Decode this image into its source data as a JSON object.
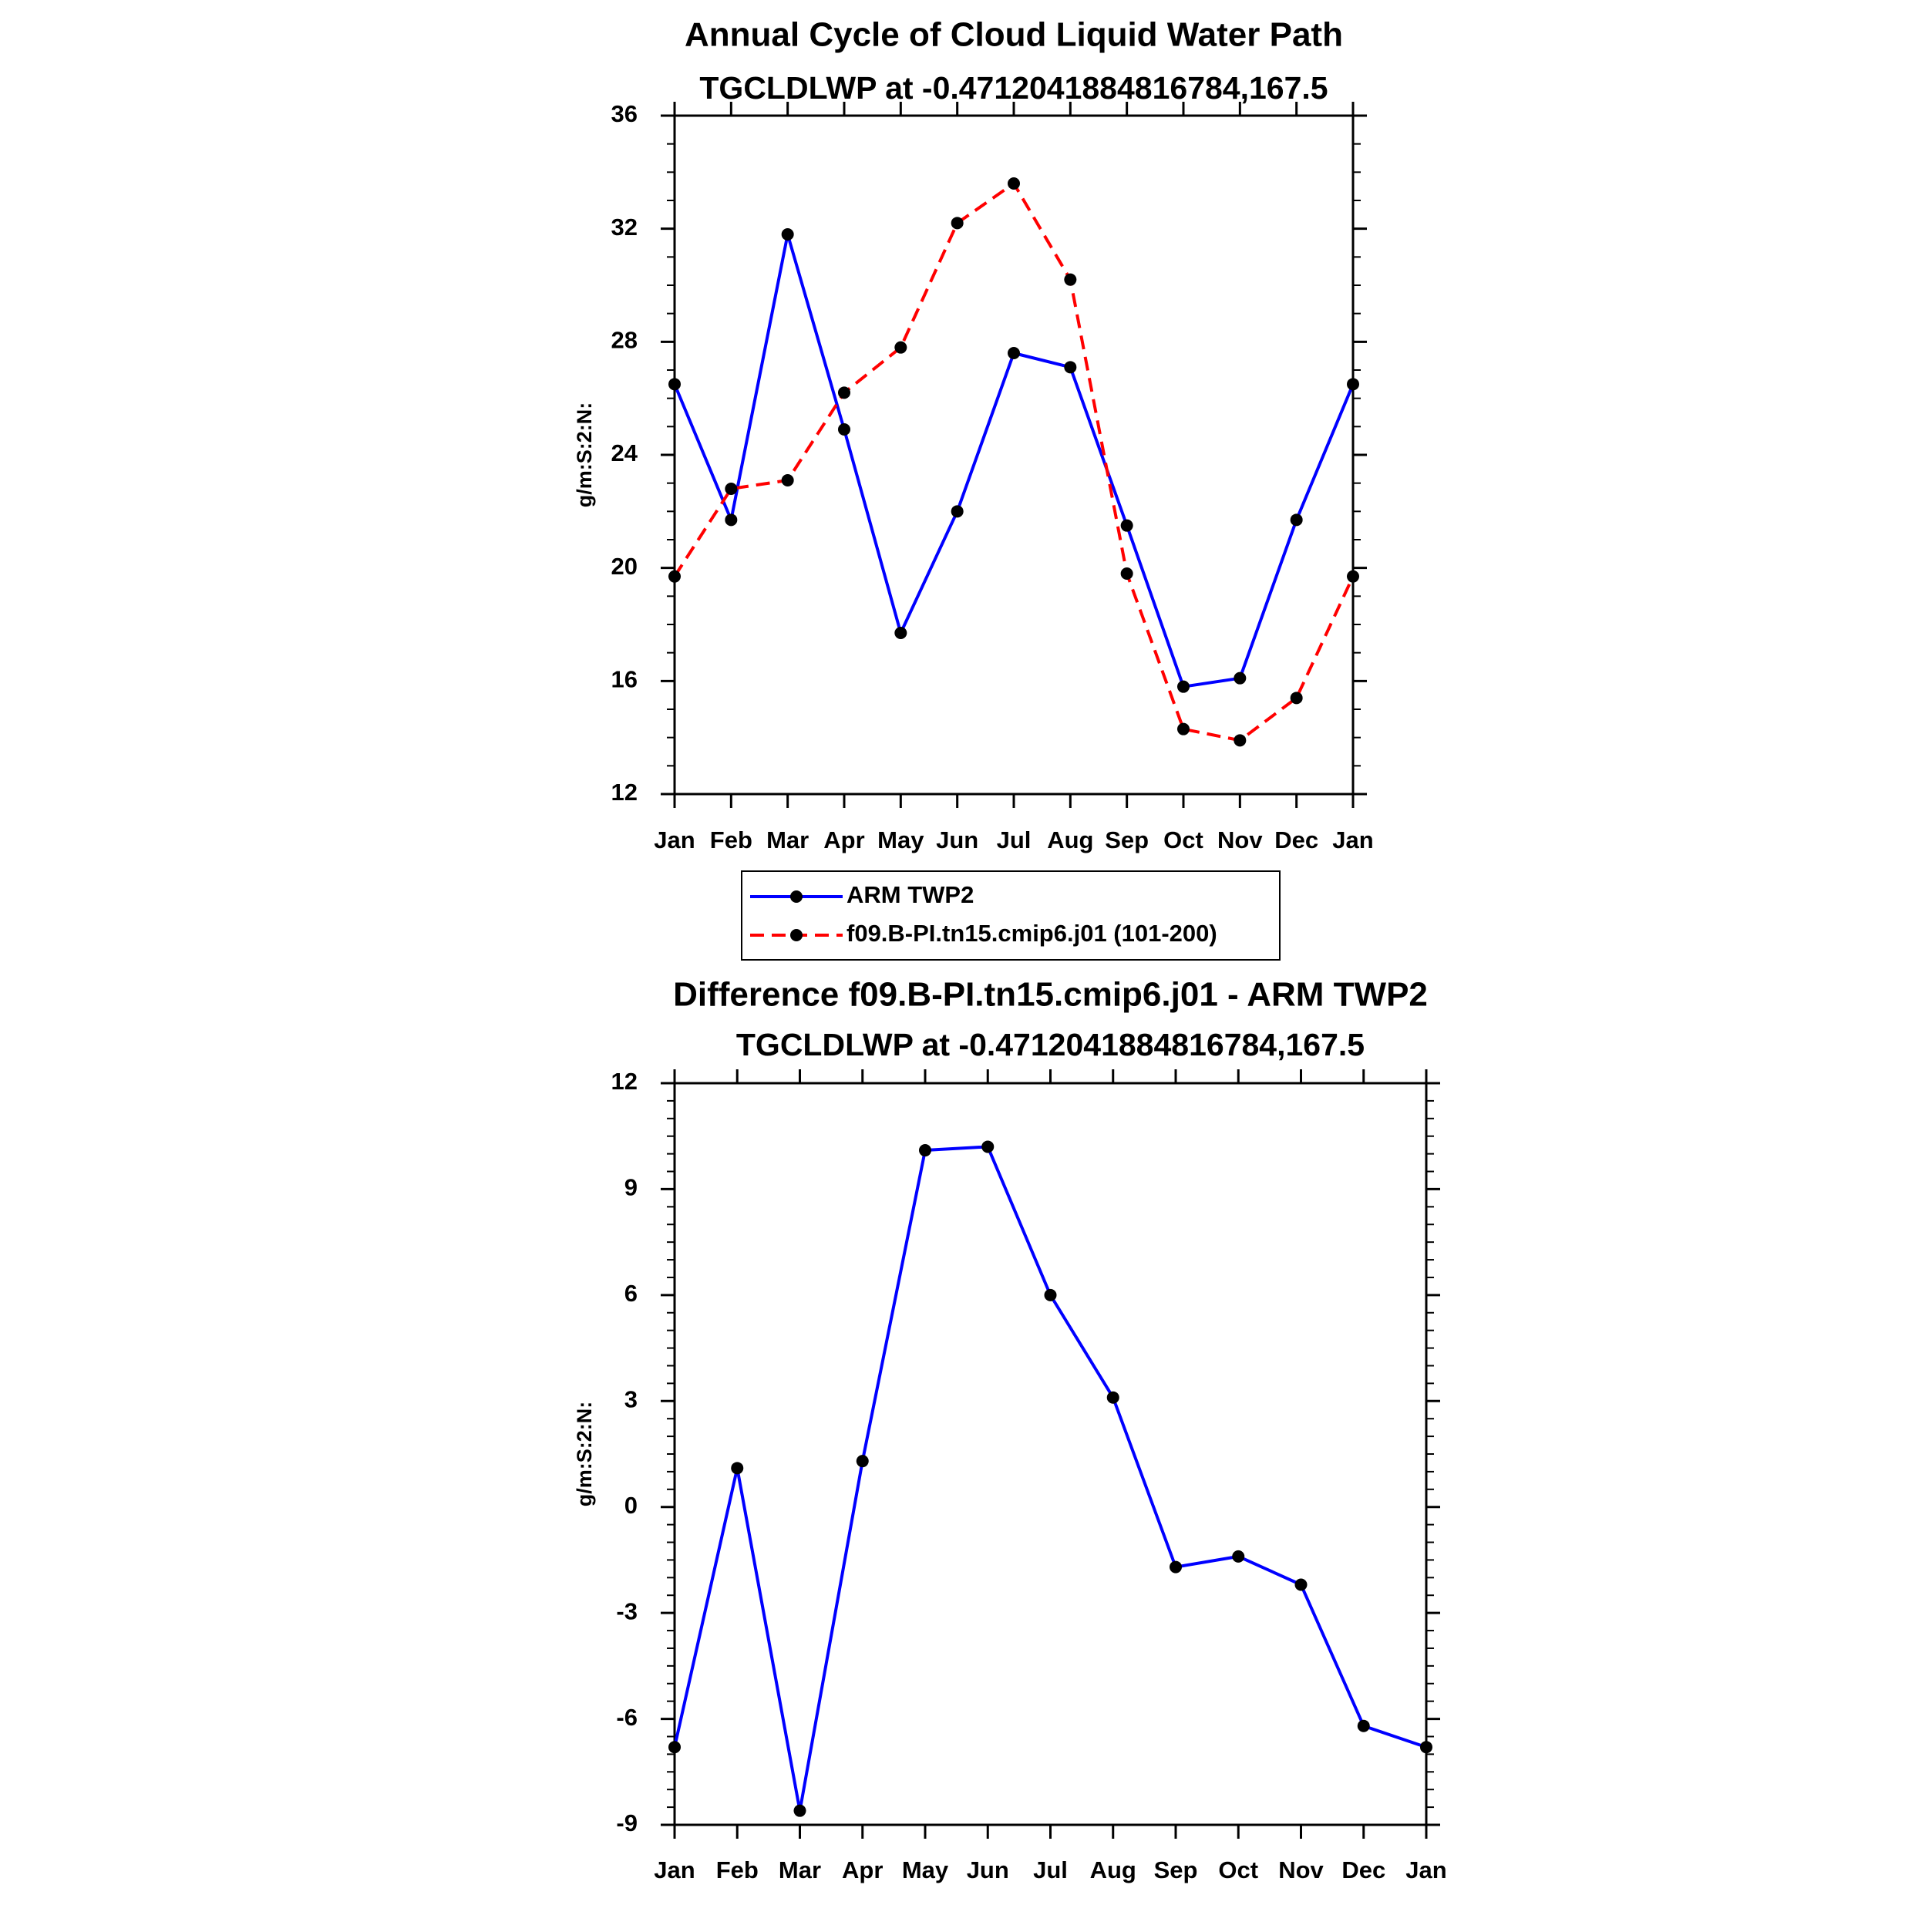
{
  "colors": {
    "arm": "#0000ff",
    "model": "#ff0000",
    "diff": "#0000ff",
    "axis": "#000000",
    "marker": "#000000"
  },
  "chart_data": [
    {
      "type": "line",
      "title": "Annual Cycle of Cloud Liquid Water Path",
      "subtitle": "TGCLDLWP at -0.4712041884816784,167.5",
      "xlabel": "",
      "ylabel": "g/m:S:2:N:",
      "categories": [
        "Jan",
        "Feb",
        "Mar",
        "Apr",
        "May",
        "Jun",
        "Jul",
        "Aug",
        "Sep",
        "Oct",
        "Nov",
        "Dec",
        "Jan"
      ],
      "ylim": [
        12,
        36
      ],
      "yticks": [
        "12",
        "16",
        "20",
        "24",
        "28",
        "32",
        "36"
      ],
      "series": [
        {
          "name": "ARM TWP2",
          "style": "solid",
          "values": [
            26.5,
            21.7,
            31.8,
            24.9,
            17.7,
            22.0,
            27.6,
            27.1,
            21.5,
            15.8,
            16.1,
            21.7,
            26.5
          ]
        },
        {
          "name": "f09.B-PI.tn15.cmip6.j01 (101-200)",
          "style": "dashed",
          "values": [
            19.7,
            22.8,
            23.1,
            26.2,
            27.8,
            32.2,
            33.6,
            30.2,
            19.8,
            14.3,
            13.9,
            15.4,
            19.7
          ]
        }
      ],
      "legend": "below"
    },
    {
      "type": "line",
      "title": "Difference f09.B-PI.tn15.cmip6.j01 - ARM TWP2",
      "subtitle": "TGCLDLWP at -0.4712041884816784,167.5",
      "xlabel": "",
      "ylabel": "g/m:S:2:N:",
      "categories": [
        "Jan",
        "Feb",
        "Mar",
        "Apr",
        "May",
        "Jun",
        "Jul",
        "Aug",
        "Sep",
        "Oct",
        "Nov",
        "Dec",
        "Jan"
      ],
      "ylim": [
        -9,
        12
      ],
      "yticks": [
        "-9",
        "-6",
        "-3",
        "0",
        "3",
        "6",
        "9",
        "12"
      ],
      "series": [
        {
          "style": "solid",
          "values": [
            -6.8,
            1.1,
            -8.6,
            1.3,
            10.1,
            10.2,
            6.0,
            3.1,
            -1.7,
            -1.4,
            -2.2,
            -6.2,
            -6.8
          ]
        }
      ]
    }
  ]
}
